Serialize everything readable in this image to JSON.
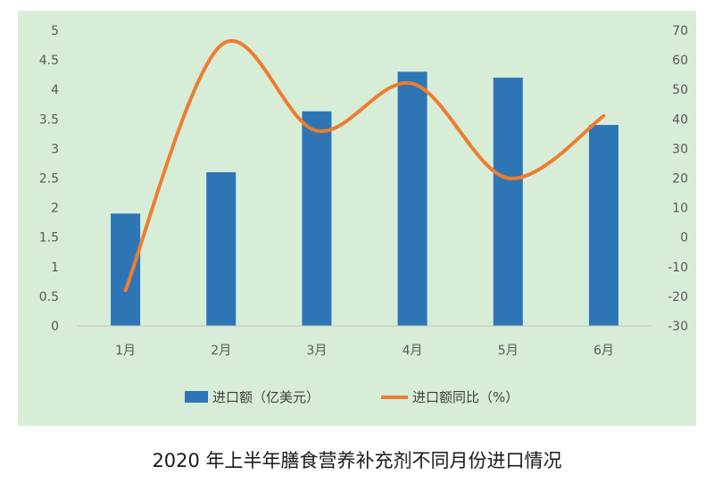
{
  "caption": "2020 年上半年膳食营养补充剂不同月份进口情况",
  "chart_data": {
    "type": "bar+line",
    "categories": [
      "1月",
      "2月",
      "3月",
      "4月",
      "5月",
      "6月"
    ],
    "series": [
      {
        "name": "进口额（亿美元）",
        "type": "bar",
        "axis": "left",
        "color": "#2e75b6",
        "values": [
          1.9,
          2.6,
          3.63,
          4.3,
          4.2,
          3.4
        ]
      },
      {
        "name": "进口额同比（%）",
        "type": "line",
        "axis": "right",
        "color": "#ed7d31",
        "values": [
          -18,
          65,
          36,
          52,
          20,
          41
        ]
      }
    ],
    "y_left": {
      "min": 0,
      "max": 5,
      "ticks": [
        "0",
        "0.5",
        "1",
        "1.5",
        "2",
        "2.5",
        "3",
        "3.5",
        "4",
        "4.5",
        "5"
      ]
    },
    "y_right": {
      "min": -30,
      "max": 70,
      "ticks": [
        "-30",
        "-20",
        "-10",
        "0",
        "10",
        "20",
        "30",
        "40",
        "50",
        "60",
        "70"
      ]
    },
    "grid": false,
    "legend_position": "bottom"
  }
}
